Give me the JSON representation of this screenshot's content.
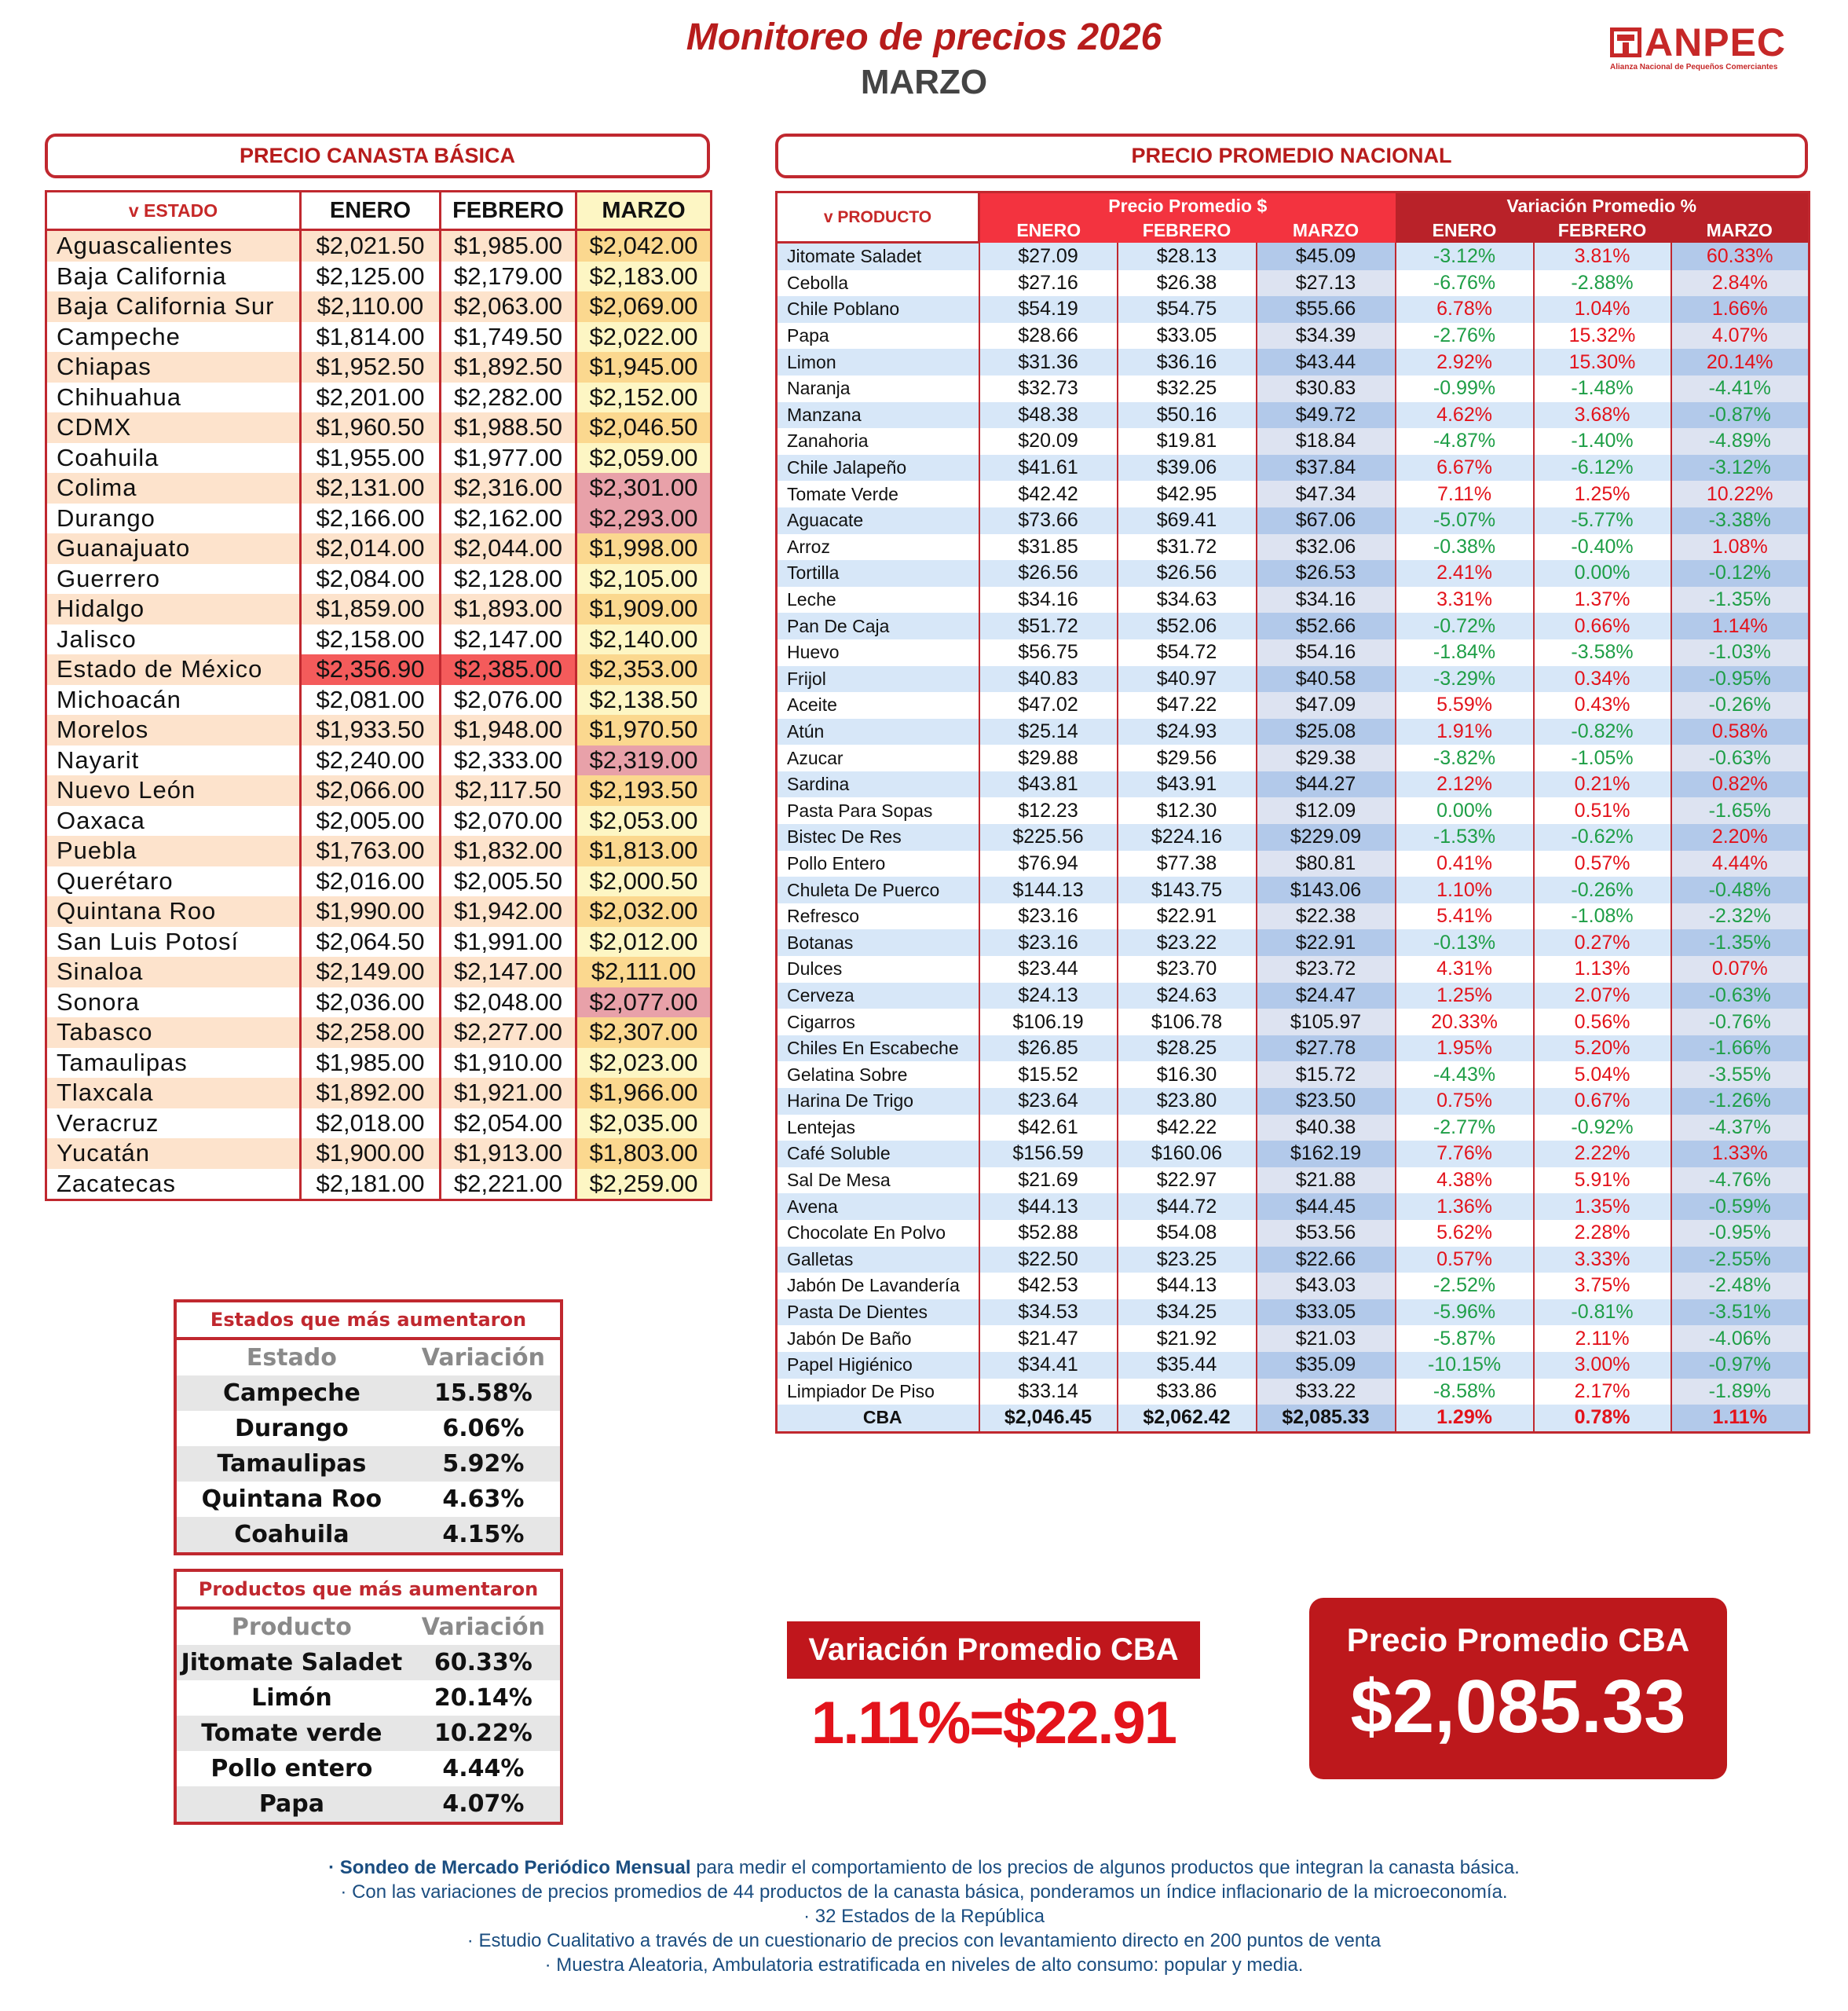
{
  "header": {
    "title": "Monitoreo de precios 2026",
    "subtitle": "MARZO",
    "logo_text": "ANPEC",
    "logo_tagline": "Alianza Nacional de Pequeños Comerciantes"
  },
  "colors": {
    "brand_red": "#c0282f",
    "positive": "#e3131b",
    "negative": "#1e9e46",
    "highlight_pink": "#e8a1a9",
    "highlight_red": "#f45b5b"
  },
  "canasta": {
    "title": "PRECIO CANASTA BÁSICA",
    "columns": [
      "v ESTADO",
      "ENERO",
      "FEBRERO",
      "MARZO"
    ],
    "rows": [
      {
        "estado": "Aguascalientes",
        "enero": "$2,021.50",
        "febrero": "$1,985.00",
        "marzo": "$2,042.00"
      },
      {
        "estado": "Baja California",
        "enero": "$2,125.00",
        "febrero": "$2,179.00",
        "marzo": "$2,183.00"
      },
      {
        "estado": "Baja California Sur",
        "enero": "$2,110.00",
        "febrero": "$2,063.00",
        "marzo": "$2,069.00"
      },
      {
        "estado": "Campeche",
        "enero": "$1,814.00",
        "febrero": "$1,749.50",
        "marzo": "$2,022.00"
      },
      {
        "estado": "Chiapas",
        "enero": "$1,952.50",
        "febrero": "$1,892.50",
        "marzo": "$1,945.00"
      },
      {
        "estado": "Chihuahua",
        "enero": "$2,201.00",
        "febrero": "$2,282.00",
        "marzo": "$2,152.00"
      },
      {
        "estado": "CDMX",
        "enero": "$1,960.50",
        "febrero": "$1,988.50",
        "marzo": "$2,046.50"
      },
      {
        "estado": "Coahuila",
        "enero": "$1,955.00",
        "febrero": "$1,977.00",
        "marzo": "$2,059.00"
      },
      {
        "estado": "Colima",
        "enero": "$2,131.00",
        "febrero": "$2,316.00",
        "marzo": "$2,301.00",
        "highlight": "pink"
      },
      {
        "estado": "Durango",
        "enero": "$2,166.00",
        "febrero": "$2,162.00",
        "marzo": "$2,293.00",
        "highlight": "pink"
      },
      {
        "estado": "Guanajuato",
        "enero": "$2,014.00",
        "febrero": "$2,044.00",
        "marzo": "$1,998.00"
      },
      {
        "estado": "Guerrero",
        "enero": "$2,084.00",
        "febrero": "$2,128.00",
        "marzo": "$2,105.00"
      },
      {
        "estado": "Hidalgo",
        "enero": "$1,859.00",
        "febrero": "$1,893.00",
        "marzo": "$1,909.00"
      },
      {
        "estado": "Jalisco",
        "enero": "$2,158.00",
        "febrero": "$2,147.00",
        "marzo": "$2,140.00"
      },
      {
        "estado": "Estado de México",
        "enero": "$2,356.90",
        "febrero": "$2,385.00",
        "marzo": "$2,353.00",
        "highlight": "red"
      },
      {
        "estado": "Michoacán",
        "enero": "$2,081.00",
        "febrero": "$2,076.00",
        "marzo": "$2,138.50"
      },
      {
        "estado": "Morelos",
        "enero": "$1,933.50",
        "febrero": "$1,948.00",
        "marzo": "$1,970.50"
      },
      {
        "estado": "Nayarit",
        "enero": "$2,240.00",
        "febrero": "$2,333.00",
        "marzo": "$2,319.00",
        "highlight": "pink"
      },
      {
        "estado": "Nuevo León",
        "enero": "$2,066.00",
        "febrero": "$2,117.50",
        "marzo": "$2,193.50"
      },
      {
        "estado": "Oaxaca",
        "enero": "$2,005.00",
        "febrero": "$2,070.00",
        "marzo": "$2,053.00"
      },
      {
        "estado": "Puebla",
        "enero": "$1,763.00",
        "febrero": "$1,832.00",
        "marzo": "$1,813.00"
      },
      {
        "estado": "Querétaro",
        "enero": "$2,016.00",
        "febrero": "$2,005.50",
        "marzo": "$2,000.50"
      },
      {
        "estado": "Quintana Roo",
        "enero": "$1,990.00",
        "febrero": "$1,942.00",
        "marzo": "$2,032.00"
      },
      {
        "estado": "San Luis Potosí",
        "enero": "$2,064.50",
        "febrero": "$1,991.00",
        "marzo": "$2,012.00"
      },
      {
        "estado": "Sinaloa",
        "enero": "$2,149.00",
        "febrero": "$2,147.00",
        "marzo": "$2,111.00"
      },
      {
        "estado": "Sonora",
        "enero": "$2,036.00",
        "febrero": "$2,048.00",
        "marzo": "$2,077.00",
        "highlight": "pink"
      },
      {
        "estado": "Tabasco",
        "enero": "$2,258.00",
        "febrero": "$2,277.00",
        "marzo": "$2,307.00"
      },
      {
        "estado": "Tamaulipas",
        "enero": "$1,985.00",
        "febrero": "$1,910.00",
        "marzo": "$2,023.00"
      },
      {
        "estado": "Tlaxcala",
        "enero": "$1,892.00",
        "febrero": "$1,921.00",
        "marzo": "$1,966.00"
      },
      {
        "estado": "Veracruz",
        "enero": "$2,018.00",
        "febrero": "$2,054.00",
        "marzo": "$2,035.00"
      },
      {
        "estado": "Yucatán",
        "enero": "$1,900.00",
        "febrero": "$1,913.00",
        "marzo": "$1,803.00"
      },
      {
        "estado": "Zacatecas",
        "enero": "$2,181.00",
        "febrero": "$2,221.00",
        "marzo": "$2,259.00"
      }
    ]
  },
  "nacional": {
    "title": "PRECIO PROMEDIO NACIONAL",
    "product_header": "v PRODUCTO",
    "group_price": "Precio Promedio $",
    "group_var": "Variación Promedio %",
    "months": [
      "ENERO",
      "FEBRERO",
      "MARZO"
    ],
    "rows": [
      [
        "Jitomate Saladet",
        "$27.09",
        "$28.13",
        "$45.09",
        "-3.12%",
        "3.81%",
        "60.33%"
      ],
      [
        "Cebolla",
        "$27.16",
        "$26.38",
        "$27.13",
        "-6.76%",
        "-2.88%",
        "2.84%"
      ],
      [
        "Chile Poblano",
        "$54.19",
        "$54.75",
        "$55.66",
        "6.78%",
        "1.04%",
        "1.66%"
      ],
      [
        "Papa",
        "$28.66",
        "$33.05",
        "$34.39",
        "-2.76%",
        "15.32%",
        "4.07%"
      ],
      [
        "Limon",
        "$31.36",
        "$36.16",
        "$43.44",
        "2.92%",
        "15.30%",
        "20.14%"
      ],
      [
        "Naranja",
        "$32.73",
        "$32.25",
        "$30.83",
        "-0.99%",
        "-1.48%",
        "-4.41%"
      ],
      [
        "Manzana",
        "$48.38",
        "$50.16",
        "$49.72",
        "4.62%",
        "3.68%",
        "-0.87%"
      ],
      [
        "Zanahoria",
        "$20.09",
        "$19.81",
        "$18.84",
        "-4.87%",
        "-1.40%",
        "-4.89%"
      ],
      [
        "Chile Jalapeño",
        "$41.61",
        "$39.06",
        "$37.84",
        "6.67%",
        "-6.12%",
        "-3.12%"
      ],
      [
        "Tomate Verde",
        "$42.42",
        "$42.95",
        "$47.34",
        "7.11%",
        "1.25%",
        "10.22%"
      ],
      [
        "Aguacate",
        "$73.66",
        "$69.41",
        "$67.06",
        "-5.07%",
        "-5.77%",
        "-3.38%"
      ],
      [
        "Arroz",
        "$31.85",
        "$31.72",
        "$32.06",
        "-0.38%",
        "-0.40%",
        "1.08%"
      ],
      [
        "Tortilla",
        "$26.56",
        "$26.56",
        "$26.53",
        "2.41%",
        "0.00%",
        "-0.12%"
      ],
      [
        "Leche",
        "$34.16",
        "$34.63",
        "$34.16",
        "3.31%",
        "1.37%",
        "-1.35%"
      ],
      [
        "Pan De Caja",
        "$51.72",
        "$52.06",
        "$52.66",
        "-0.72%",
        "0.66%",
        "1.14%"
      ],
      [
        "Huevo",
        "$56.75",
        "$54.72",
        "$54.16",
        "-1.84%",
        "-3.58%",
        "-1.03%"
      ],
      [
        "Frijol",
        "$40.83",
        "$40.97",
        "$40.58",
        "-3.29%",
        "0.34%",
        "-0.95%"
      ],
      [
        "Aceite",
        "$47.02",
        "$47.22",
        "$47.09",
        "5.59%",
        "0.43%",
        "-0.26%"
      ],
      [
        "Atún",
        "$25.14",
        "$24.93",
        "$25.08",
        "1.91%",
        "-0.82%",
        "0.58%"
      ],
      [
        "Azucar",
        "$29.88",
        "$29.56",
        "$29.38",
        "-3.82%",
        "-1.05%",
        "-0.63%"
      ],
      [
        "Sardina",
        "$43.81",
        "$43.91",
        "$44.27",
        "2.12%",
        "0.21%",
        "0.82%"
      ],
      [
        "Pasta Para Sopas",
        "$12.23",
        "$12.30",
        "$12.09",
        "0.00%",
        "0.51%",
        "-1.65%"
      ],
      [
        "Bistec De Res",
        "$225.56",
        "$224.16",
        "$229.09",
        "-1.53%",
        "-0.62%",
        "2.20%"
      ],
      [
        "Pollo Entero",
        "$76.94",
        "$77.38",
        "$80.81",
        "0.41%",
        "0.57%",
        "4.44%"
      ],
      [
        "Chuleta De Puerco",
        "$144.13",
        "$143.75",
        "$143.06",
        "1.10%",
        "-0.26%",
        "-0.48%"
      ],
      [
        "Refresco",
        "$23.16",
        "$22.91",
        "$22.38",
        "5.41%",
        "-1.08%",
        "-2.32%"
      ],
      [
        "Botanas",
        "$23.16",
        "$23.22",
        "$22.91",
        "-0.13%",
        "0.27%",
        "-1.35%"
      ],
      [
        "Dulces",
        "$23.44",
        "$23.70",
        "$23.72",
        "4.31%",
        "1.13%",
        "0.07%"
      ],
      [
        "Cerveza",
        "$24.13",
        "$24.63",
        "$24.47",
        "1.25%",
        "2.07%",
        "-0.63%"
      ],
      [
        "Cigarros",
        "$106.19",
        "$106.78",
        "$105.97",
        "20.33%",
        "0.56%",
        "-0.76%"
      ],
      [
        "Chiles En Escabeche",
        "$26.85",
        "$28.25",
        "$27.78",
        "1.95%",
        "5.20%",
        "-1.66%"
      ],
      [
        "Gelatina Sobre",
        "$15.52",
        "$16.30",
        "$15.72",
        "-4.43%",
        "5.04%",
        "-3.55%"
      ],
      [
        "Harina De Trigo",
        "$23.64",
        "$23.80",
        "$23.50",
        "0.75%",
        "0.67%",
        "-1.26%"
      ],
      [
        "Lentejas",
        "$42.61",
        "$42.22",
        "$40.38",
        "-2.77%",
        "-0.92%",
        "-4.37%"
      ],
      [
        "Café Soluble",
        "$156.59",
        "$160.06",
        "$162.19",
        "7.76%",
        "2.22%",
        "1.33%"
      ],
      [
        "Sal De Mesa",
        "$21.69",
        "$22.97",
        "$21.88",
        "4.38%",
        "5.91%",
        "-4.76%"
      ],
      [
        "Avena",
        "$44.13",
        "$44.72",
        "$44.45",
        "1.36%",
        "1.35%",
        "-0.59%"
      ],
      [
        "Chocolate En Polvo",
        "$52.88",
        "$54.08",
        "$53.56",
        "5.62%",
        "2.28%",
        "-0.95%"
      ],
      [
        "Galletas",
        "$22.50",
        "$23.25",
        "$22.66",
        "0.57%",
        "3.33%",
        "-2.55%"
      ],
      [
        "Jabón De Lavandería",
        "$42.53",
        "$44.13",
        "$43.03",
        "-2.52%",
        "3.75%",
        "-2.48%"
      ],
      [
        "Pasta De Dientes",
        "$34.53",
        "$34.25",
        "$33.05",
        "-5.96%",
        "-0.81%",
        "-3.51%"
      ],
      [
        "Jabón De Baño",
        "$21.47",
        "$21.92",
        "$21.03",
        "-5.87%",
        "2.11%",
        "-4.06%"
      ],
      [
        "Papel Higiénico",
        "$34.41",
        "$35.44",
        "$35.09",
        "-10.15%",
        "3.00%",
        "-0.97%"
      ],
      [
        "Limpiador De Piso",
        "$33.14",
        "$33.86",
        "$33.22",
        "-8.58%",
        "2.17%",
        "-1.89%"
      ]
    ],
    "total": [
      "CBA",
      "$2,046.45",
      "$2,062.42",
      "$2,085.33",
      "1.29%",
      "0.78%",
      "1.11%"
    ]
  },
  "top_states": {
    "title": "Estados que más aumentaron",
    "columns": [
      "Estado",
      "Variación"
    ],
    "rows": [
      [
        "Campeche",
        "15.58%"
      ],
      [
        "Durango",
        "6.06%"
      ],
      [
        "Tamaulipas",
        "5.92%"
      ],
      [
        "Quintana Roo",
        "4.63%"
      ],
      [
        "Coahuila",
        "4.15%"
      ]
    ]
  },
  "top_products": {
    "title": "Productos que más aumentaron",
    "columns": [
      "Producto",
      "Variación"
    ],
    "rows": [
      [
        "Jitomate Saladet",
        "60.33%"
      ],
      [
        "Limón",
        "20.14%"
      ],
      [
        "Tomate verde",
        "10.22%"
      ],
      [
        "Pollo entero",
        "4.44%"
      ],
      [
        "Papa",
        "4.07%"
      ]
    ]
  },
  "summary": {
    "var_label": "Variación Promedio CBA",
    "var_value": "1.11%=$22.91",
    "price_label": "Precio Promedio CBA",
    "price_value": "$2,085.33"
  },
  "footer": {
    "line1_bold": "· Sondeo de Mercado Periódico Mensual",
    "line1_rest": " para medir el comportamiento de los precios de algunos productos que integran la canasta básica.",
    "lines": [
      "· Con las variaciones de precios promedios de 44 productos de la canasta básica, ponderamos un índice inflacionario de la microeconomía.",
      "· 32 Estados de la República",
      "· Estudio Cualitativo a través de un cuestionario de precios con levantamiento directo en 200 puntos de venta",
      "· Muestra Aleatoria, Ambulatoria estratificada en niveles de alto consumo: popular y media."
    ]
  }
}
